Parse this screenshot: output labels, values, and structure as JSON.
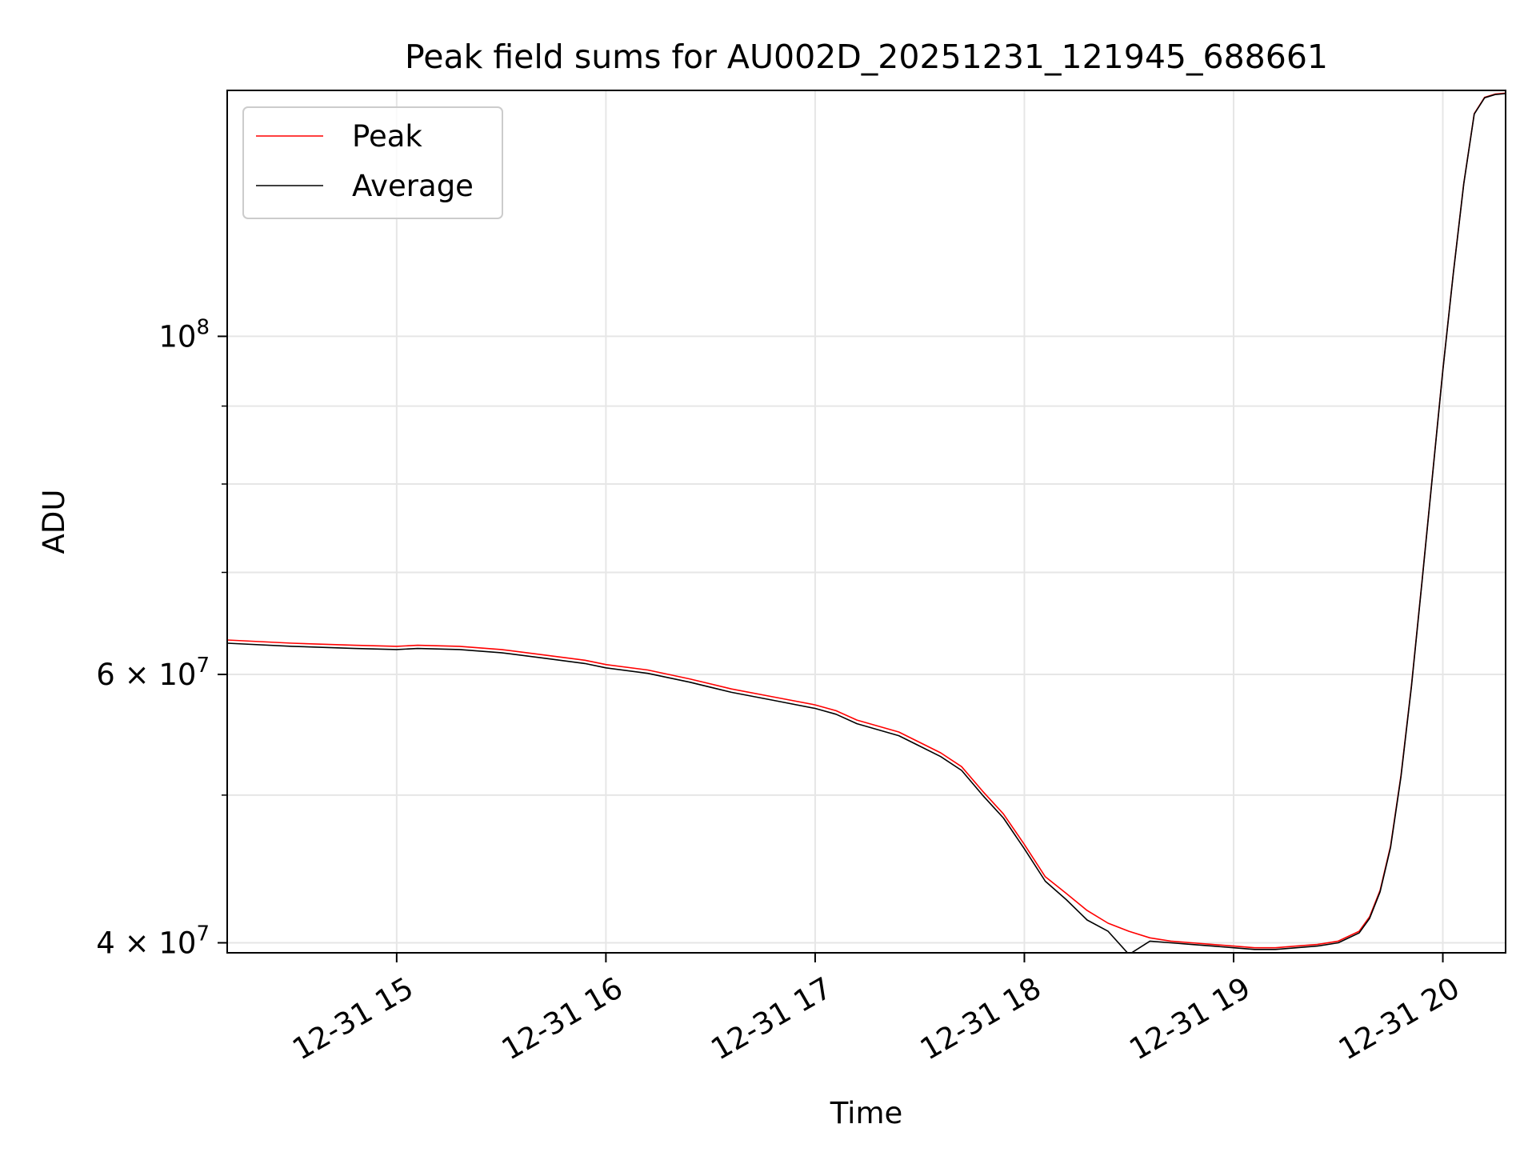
{
  "chart_data": {
    "type": "line",
    "title": "Peak field sums for AU002D_20251231_121945_688661",
    "xlabel": "Time",
    "ylabel": "ADU",
    "yscale": "log",
    "xlim": [
      14.19,
      20.3
    ],
    "ylim": [
      39400000,
      145000000
    ],
    "grid": true,
    "legend_position": "upper-left",
    "x_ticks": [
      {
        "value": 15,
        "label": "12-31 15"
      },
      {
        "value": 16,
        "label": "12-31 16"
      },
      {
        "value": 17,
        "label": "12-31 17"
      },
      {
        "value": 18,
        "label": "12-31 18"
      },
      {
        "value": 19,
        "label": "12-31 19"
      },
      {
        "value": 20,
        "label": "12-31 20"
      }
    ],
    "y_major_ticks": [
      {
        "value": 40000000,
        "base": "4 × 10",
        "exp": "7"
      },
      {
        "value": 60000000,
        "base": "6 × 10",
        "exp": "7"
      },
      {
        "value": 100000000,
        "base": "10",
        "exp": "8"
      }
    ],
    "y_minor_ticks": [
      50000000,
      70000000,
      80000000,
      90000000
    ],
    "series": [
      {
        "name": "Peak",
        "color": "#ff0000",
        "x": [
          14.19,
          14.5,
          14.8,
          15.0,
          15.1,
          15.3,
          15.5,
          15.7,
          15.9,
          16.0,
          16.2,
          16.4,
          16.6,
          16.8,
          17.0,
          17.1,
          17.2,
          17.4,
          17.6,
          17.7,
          17.8,
          17.9,
          18.0,
          18.1,
          18.2,
          18.3,
          18.4,
          18.5,
          18.6,
          18.7,
          18.8,
          18.9,
          19.0,
          19.1,
          19.2,
          19.3,
          19.4,
          19.5,
          19.6,
          19.65,
          19.7,
          19.75,
          19.8,
          19.85,
          19.9,
          19.95,
          20.0,
          20.05,
          20.1,
          20.15,
          20.2,
          20.25,
          20.3
        ],
        "y": [
          63200000,
          62900000,
          62700000,
          62600000,
          62700000,
          62600000,
          62300000,
          61800000,
          61300000,
          60900000,
          60400000,
          59600000,
          58700000,
          58000000,
          57300000,
          56800000,
          56000000,
          55000000,
          53300000,
          52200000,
          50300000,
          48600000,
          46400000,
          44200000,
          43100000,
          42000000,
          41200000,
          40700000,
          40300000,
          40100000,
          40000000,
          39900000,
          39800000,
          39700000,
          39700000,
          39800000,
          39900000,
          40100000,
          40700000,
          41600000,
          43300000,
          46300000,
          51500000,
          59000000,
          69000000,
          81000000,
          95000000,
          110000000,
          126000000,
          140000000,
          143500000,
          144200000,
          144400000
        ]
      },
      {
        "name": "Average",
        "color": "#000000",
        "x": [
          14.19,
          14.5,
          14.8,
          15.0,
          15.1,
          15.3,
          15.5,
          15.7,
          15.9,
          16.0,
          16.2,
          16.4,
          16.6,
          16.8,
          17.0,
          17.1,
          17.2,
          17.4,
          17.6,
          17.7,
          17.8,
          17.9,
          18.0,
          18.1,
          18.2,
          18.3,
          18.4,
          18.5,
          18.6,
          18.7,
          18.8,
          18.9,
          19.0,
          19.1,
          19.2,
          19.3,
          19.4,
          19.5,
          19.6,
          19.65,
          19.7,
          19.75,
          19.8,
          19.85,
          19.9,
          19.95,
          20.0,
          20.05,
          20.1,
          20.15,
          20.2,
          20.25,
          20.3
        ],
        "y": [
          62900000,
          62600000,
          62400000,
          62300000,
          62400000,
          62300000,
          62000000,
          61500000,
          61000000,
          60600000,
          60100000,
          59300000,
          58400000,
          57700000,
          57000000,
          56500000,
          55700000,
          54700000,
          53000000,
          51900000,
          50000000,
          48300000,
          46100000,
          43900000,
          42700000,
          41400000,
          40700000,
          39300000,
          40100000,
          40000000,
          39900000,
          39800000,
          39700000,
          39600000,
          39600000,
          39700000,
          39800000,
          40000000,
          40600000,
          41500000,
          43200000,
          46200000,
          51400000,
          58900000,
          68900000,
          80900000,
          94900000,
          109900000,
          125900000,
          139900000,
          143400000,
          144100000,
          144300000
        ]
      }
    ]
  }
}
